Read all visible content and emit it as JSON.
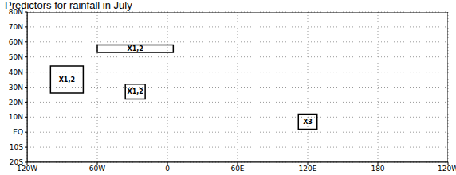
{
  "chart_data": {
    "type": "map",
    "title": "Predictors for rainfall in July",
    "xlim": [
      -120,
      240
    ],
    "xticks": [
      {
        "value": -120,
        "label": "120W"
      },
      {
        "value": -60,
        "label": "60W"
      },
      0,
      {
        "value": 60,
        "label": "60E"
      },
      {
        "value": 120,
        "label": "120E"
      },
      180,
      {
        "value": 240,
        "label": "120W"
      }
    ],
    "ylim": [
      -20,
      80
    ],
    "yticks": [
      {
        "value": -20,
        "label": "20S"
      },
      {
        "value": -10,
        "label": "10S"
      },
      {
        "value": 0,
        "label": "EQ"
      },
      {
        "value": 10,
        "label": "10N"
      },
      {
        "value": 20,
        "label": "20N"
      },
      {
        "value": 30,
        "label": "30N"
      },
      {
        "value": 40,
        "label": "40N"
      },
      {
        "value": 50,
        "label": "50N"
      },
      {
        "value": 60,
        "label": "60N"
      },
      {
        "value": 70,
        "label": "70N"
      },
      {
        "value": 80,
        "label": "80N"
      }
    ],
    "grid": true,
    "regions": [
      {
        "label": "X1,2",
        "lon": [
          -60,
          5
        ],
        "lat": [
          53,
          58
        ]
      },
      {
        "label": "X1,2",
        "lon": [
          -100,
          -72
        ],
        "lat": [
          26,
          44
        ]
      },
      {
        "label": "X1,2",
        "lon": [
          -36,
          -19
        ],
        "lat": [
          22,
          32
        ]
      },
      {
        "label": "X3",
        "lon": [
          112,
          128
        ],
        "lat": [
          2,
          12
        ]
      }
    ]
  }
}
